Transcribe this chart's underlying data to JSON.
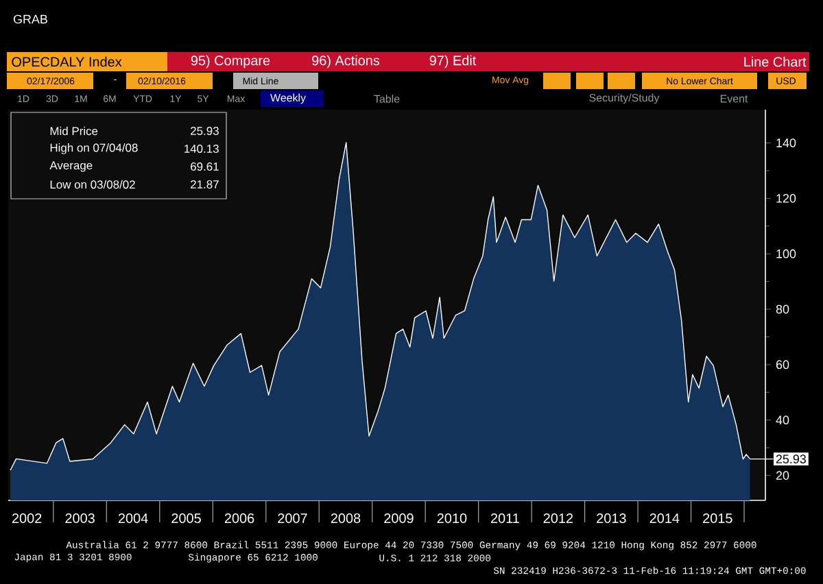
{
  "chart_data": {
    "type": "area",
    "title": "GRAB",
    "x": [
      2002.19,
      2002.3,
      2002.88,
      2003.05,
      2003.18,
      2003.31,
      2003.74,
      2004.08,
      2004.34,
      2004.51,
      2004.77,
      2004.94,
      2005.24,
      2005.37,
      2005.63,
      2005.84,
      2006.02,
      2006.27,
      2006.53,
      2006.7,
      2006.92,
      2007.05,
      2007.26,
      2007.61,
      2007.86,
      2008.03,
      2008.21,
      2008.38,
      2008.51,
      2008.64,
      2008.81,
      2008.94,
      2009.11,
      2009.24,
      2009.45,
      2009.58,
      2009.71,
      2009.8,
      2010.01,
      2010.14,
      2010.27,
      2010.35,
      2010.57,
      2010.74,
      2010.91,
      2011.08,
      2011.18,
      2011.28,
      2011.34,
      2011.51,
      2011.69,
      2011.81,
      2011.99,
      2012.12,
      2012.29,
      2012.42,
      2012.59,
      2012.81,
      2013.06,
      2013.23,
      2013.58,
      2013.79,
      2013.96,
      2014.18,
      2014.39,
      2014.56,
      2014.69,
      2014.82,
      2014.95,
      2015.03,
      2015.15,
      2015.29,
      2015.42,
      2015.6,
      2015.7,
      2015.85,
      2015.98,
      2016.04,
      2016.11
    ],
    "series": [
      {
        "color": "#14335a",
        "values": [
          21.87,
          26,
          24.4,
          31.8,
          33.3,
          25.1,
          25.9,
          31.8,
          38.3,
          35,
          46.5,
          35,
          52.2,
          46.5,
          60.5,
          52.2,
          59.7,
          67.1,
          71.2,
          57.2,
          59.7,
          49,
          64.6,
          72.8,
          91,
          87.7,
          102.5,
          127.2,
          140.13,
          109,
          61.3,
          34.2,
          43.2,
          51.5,
          71.2,
          72.8,
          66.3,
          76.9,
          79.4,
          69.5,
          84.3,
          69.5,
          77.8,
          79.4,
          91,
          99.2,
          112.3,
          120.6,
          104.1,
          113.2,
          104.1,
          112.3,
          112.3,
          124.7,
          115.7,
          90.1,
          114,
          105.8,
          114,
          99.2,
          112.3,
          104.1,
          107.4,
          104.1,
          110.7,
          100.8,
          94.2,
          76.1,
          46.5,
          56.4,
          51.5,
          63,
          59.7,
          44.8,
          49,
          38.3,
          25.9,
          27.6,
          25.93
        ]
      }
    ],
    "xlim": [
      2002.15,
      2016.4
    ],
    "ylim": [
      11,
      152
    ],
    "xticks": [
      {
        "value": 2002.5,
        "label": "2002"
      },
      {
        "value": 2003.5,
        "label": "2003"
      },
      {
        "value": 2004.5,
        "label": "2004"
      },
      {
        "value": 2005.5,
        "label": "2005"
      },
      {
        "value": 2006.5,
        "label": "2006"
      },
      {
        "value": 2007.5,
        "label": "2007"
      },
      {
        "value": 2008.5,
        "label": "2008"
      },
      {
        "value": 2009.5,
        "label": "2009"
      },
      {
        "value": 2010.5,
        "label": "2010"
      },
      {
        "value": 2011.5,
        "label": "2011"
      },
      {
        "value": 2012.5,
        "label": "2012"
      },
      {
        "value": 2013.5,
        "label": "2013"
      },
      {
        "value": 2014.5,
        "label": "2014"
      },
      {
        "value": 2015.5,
        "label": "2015"
      },
      {
        "value": 2003,
        "label": null
      },
      {
        "value": 2004,
        "label": null
      },
      {
        "value": 2005,
        "label": null
      },
      {
        "value": 2006,
        "label": null
      },
      {
        "value": 2007,
        "label": null
      },
      {
        "value": 2008,
        "label": null
      },
      {
        "value": 2009,
        "label": null
      },
      {
        "value": 2010,
        "label": null
      },
      {
        "value": 2011,
        "label": null
      },
      {
        "value": 2012,
        "label": null
      },
      {
        "value": 2013,
        "label": null
      },
      {
        "value": 2014,
        "label": null
      },
      {
        "value": 2015,
        "label": null
      },
      {
        "value": 2016,
        "label": null
      }
    ],
    "yticks": [
      20,
      40,
      60,
      80,
      100,
      120,
      140
    ],
    "grid": false,
    "annotations": [
      "OPECDALY Index",
      "95) Compare",
      "96) Actions",
      "97) Edit",
      "Line Chart",
      "02/17/2006",
      "-",
      "02/10/2016",
      "Mid Line",
      "Mov Avg",
      "No Lower Chart",
      "USD",
      "1D",
      "3D",
      "1M",
      "6M",
      "YTD",
      "1Y",
      "5Y",
      "Max",
      "Weekly",
      "Table",
      "Security/Study",
      "Event",
      "Mid Price",
      "25.93",
      "High on 07/04/08",
      "140.13",
      "Average",
      "69.61",
      "Low on 03/08/02",
      "21.87",
      "Australia 61 2 9777 8600 Brazil 5511 2395 9000 Europe 44 20 7330 7500 Germany 49 69 9204 1210 Hong Kong 852 2977 6000",
      "Japan 81 3 3201 8900",
      "Singapore 65 6212 1000",
      "U.S. 1 212 318 2000",
      "SN 232419 H236-3672-3 11-Feb-16 11:19:24 GMT GMT+0:00",
      {
        "text": "25.93",
        "x": 2016.11,
        "y": 25.93
      }
    ]
  }
}
